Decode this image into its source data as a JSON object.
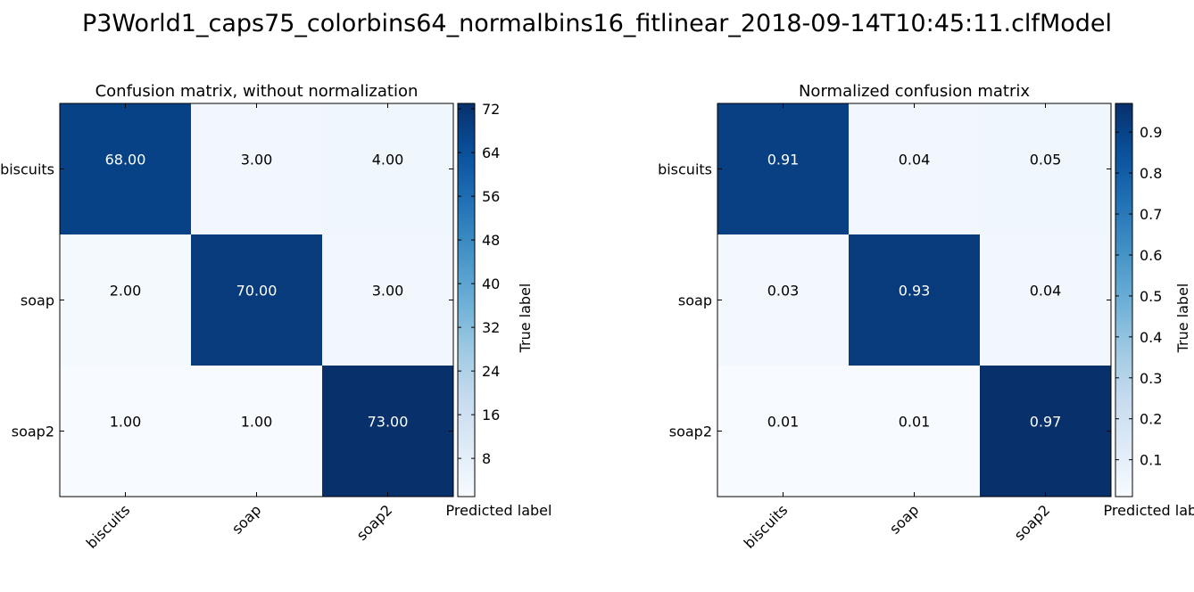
{
  "figure": {
    "title": "P3World1_caps75_colorbins64_normalbins16_fitlinear_2018-09-14T10:45:11.clfModel"
  },
  "chart_data": [
    {
      "type": "heatmap",
      "title": "Confusion matrix, without normalization",
      "xlabel": "Predicted label",
      "ylabel": "True label",
      "x_categories": [
        "biscuits",
        "soap",
        "soap2"
      ],
      "y_categories": [
        "biscuits",
        "soap",
        "soap2"
      ],
      "values": [
        [
          68.0,
          3.0,
          4.0
        ],
        [
          2.0,
          70.0,
          3.0
        ],
        [
          1.0,
          1.0,
          73.0
        ]
      ],
      "cell_labels": [
        [
          "68.00",
          "3.00",
          "4.00"
        ],
        [
          "2.00",
          "70.00",
          "3.00"
        ],
        [
          "1.00",
          "1.00",
          "73.00"
        ]
      ],
      "colormap": "Blues",
      "colorbar": {
        "range": [
          1,
          73
        ],
        "ticks": [
          8,
          16,
          24,
          32,
          40,
          48,
          56,
          64,
          72
        ],
        "tick_labels": [
          "8",
          "16",
          "24",
          "32",
          "40",
          "48",
          "56",
          "64",
          "72"
        ]
      },
      "text_color_light": "#ffffff",
      "text_color_dark": "#000000"
    },
    {
      "type": "heatmap",
      "title": "Normalized confusion matrix",
      "xlabel": "Predicted label",
      "ylabel": "True label",
      "x_categories": [
        "biscuits",
        "soap",
        "soap2"
      ],
      "y_categories": [
        "biscuits",
        "soap",
        "soap2"
      ],
      "values": [
        [
          0.91,
          0.04,
          0.05
        ],
        [
          0.03,
          0.93,
          0.04
        ],
        [
          0.01,
          0.01,
          0.97
        ]
      ],
      "cell_labels": [
        [
          "0.91",
          "0.04",
          "0.05"
        ],
        [
          "0.03",
          "0.93",
          "0.04"
        ],
        [
          "0.01",
          "0.01",
          "0.97"
        ]
      ],
      "colormap": "Blues",
      "colorbar": {
        "range": [
          0.01,
          0.97
        ],
        "ticks": [
          0.1,
          0.2,
          0.3,
          0.4,
          0.5,
          0.6,
          0.7,
          0.8,
          0.9
        ],
        "tick_labels": [
          "0.1",
          "0.2",
          "0.3",
          "0.4",
          "0.5",
          "0.6",
          "0.7",
          "0.8",
          "0.9"
        ]
      },
      "text_color_light": "#ffffff",
      "text_color_dark": "#000000"
    }
  ]
}
